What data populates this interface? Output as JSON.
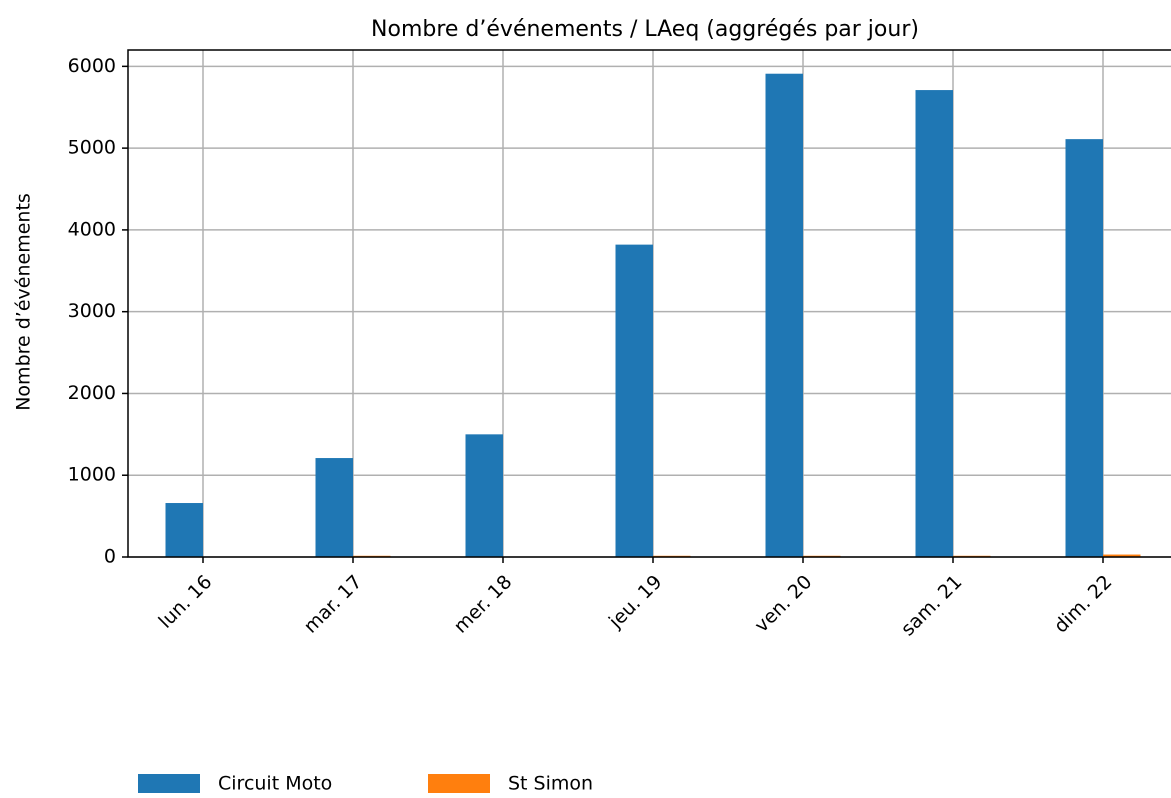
{
  "chart_data": {
    "type": "bar",
    "title": "Nombre d’événements / LAeq (aggrégés par jour)",
    "ylabel": "Nombre d’événements",
    "categories": [
      "lun. 16",
      "mar. 17",
      "mer. 18",
      "jeu. 19",
      "ven. 20",
      "sam. 21",
      "dim. 22"
    ],
    "series": [
      {
        "name": "Circuit Moto",
        "color": "#1f77b4",
        "values": [
          660,
          1210,
          1500,
          3820,
          5910,
          5710,
          5110
        ]
      },
      {
        "name": "St Simon",
        "color": "#ff7f0e",
        "values": [
          5,
          15,
          5,
          15,
          15,
          15,
          30
        ]
      }
    ],
    "ylim": [
      0,
      6200
    ],
    "yticks": [
      0,
      1000,
      2000,
      3000,
      4000,
      5000,
      6000
    ],
    "grid": true,
    "legend": "bottom"
  }
}
